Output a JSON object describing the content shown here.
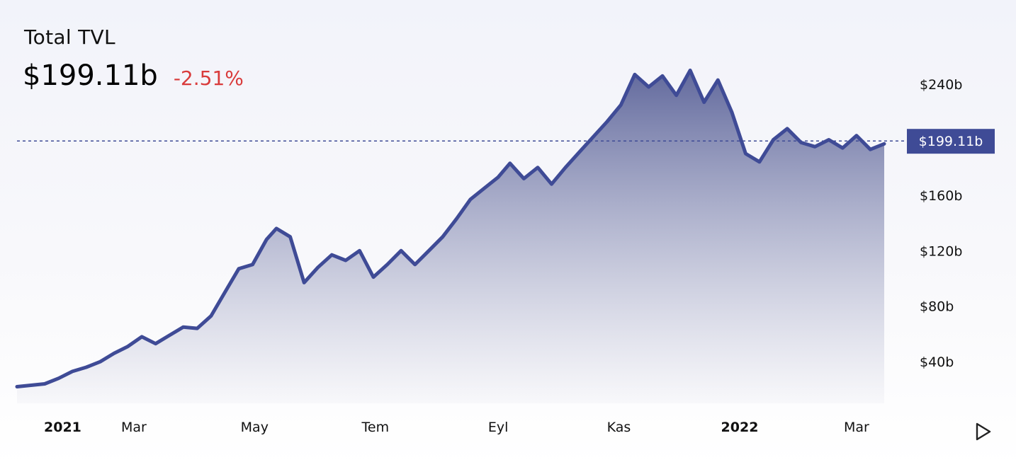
{
  "header": {
    "title": "Total TVL",
    "value": "$199.11b",
    "change": "-2.51%"
  },
  "colors": {
    "line": "#3f4b96",
    "area_top": "#5a6298",
    "area_bottom": "#f4f4f8",
    "change_negative": "#d93b3b",
    "current_label_bg": "#3f4b96"
  },
  "chart_data": {
    "type": "area",
    "x_start": "2021-01-01",
    "x_end": "2022-03-15",
    "x": [
      "2021-01-01",
      "2021-01-08",
      "2021-01-15",
      "2021-01-22",
      "2021-01-29",
      "2021-02-05",
      "2021-02-12",
      "2021-02-19",
      "2021-02-26",
      "2021-03-05",
      "2021-03-12",
      "2021-03-19",
      "2021-03-26",
      "2021-04-02",
      "2021-04-09",
      "2021-04-16",
      "2021-04-23",
      "2021-04-30",
      "2021-05-07",
      "2021-05-12",
      "2021-05-19",
      "2021-05-26",
      "2021-06-02",
      "2021-06-09",
      "2021-06-16",
      "2021-06-23",
      "2021-06-30",
      "2021-07-07",
      "2021-07-14",
      "2021-07-21",
      "2021-07-28",
      "2021-08-04",
      "2021-08-11",
      "2021-08-18",
      "2021-08-25",
      "2021-09-01",
      "2021-09-07",
      "2021-09-14",
      "2021-09-21",
      "2021-09-28",
      "2021-10-05",
      "2021-10-12",
      "2021-10-19",
      "2021-10-26",
      "2021-11-02",
      "2021-11-09",
      "2021-11-16",
      "2021-11-23",
      "2021-11-30",
      "2021-12-07",
      "2021-12-14",
      "2021-12-21",
      "2021-12-28",
      "2022-01-04",
      "2022-01-11",
      "2022-01-18",
      "2022-01-25",
      "2022-02-01",
      "2022-02-08",
      "2022-02-15",
      "2022-02-22",
      "2022-03-01",
      "2022-03-08",
      "2022-03-15"
    ],
    "values": [
      22,
      23,
      24,
      28,
      33,
      36,
      40,
      46,
      51,
      58,
      53,
      59,
      65,
      64,
      73,
      90,
      107,
      110,
      128,
      136,
      130,
      97,
      108,
      117,
      113,
      120,
      101,
      110,
      120,
      110,
      120,
      130,
      143,
      157,
      165,
      173,
      183,
      172,
      180,
      168,
      180,
      191,
      202,
      213,
      225,
      247,
      238,
      246,
      232,
      250,
      227,
      243,
      220,
      190,
      184,
      200,
      208,
      198,
      195,
      200,
      194,
      203,
      193,
      197
    ],
    "ylim": [
      10,
      265
    ],
    "y_ticks": [
      40,
      80,
      120,
      160,
      240
    ],
    "y_tick_labels": [
      "$40b",
      "$80b",
      "$120b",
      "$160b",
      "$240b"
    ],
    "x_ticks": [
      "2021-01-01",
      "2021-03-01",
      "2021-05-01",
      "2021-07-01",
      "2021-09-01",
      "2021-11-01",
      "2022-01-01",
      "2022-03-01"
    ],
    "x_tick_labels": [
      "2021",
      "Mar",
      "May",
      "Tem",
      "Eyl",
      "Kas",
      "2022",
      "Mar"
    ],
    "x_tick_bold": [
      true,
      false,
      false,
      false,
      false,
      false,
      true,
      false
    ],
    "current_value": 199.11,
    "current_label": "$199.11b",
    "grid": false
  }
}
